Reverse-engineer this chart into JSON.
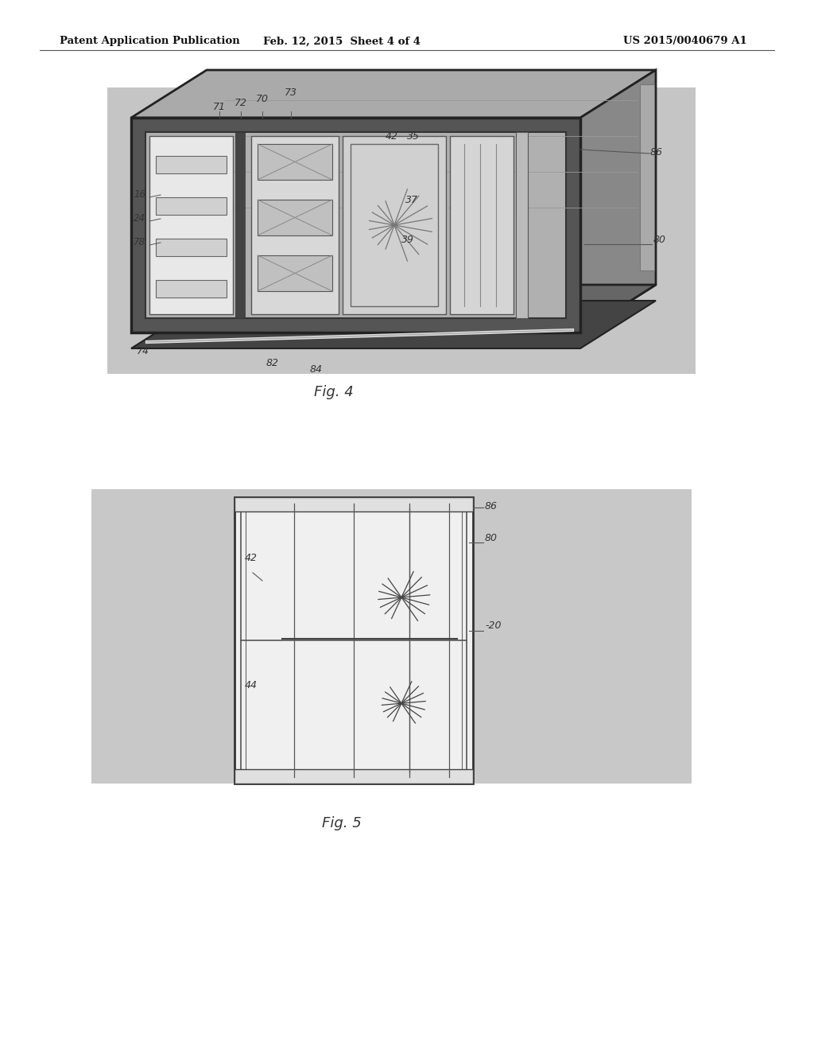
{
  "background_color": "#ffffff",
  "header_left": "Patent Application Publication",
  "header_mid": "Feb. 12, 2015  Sheet 4 of 4",
  "header_right": "US 2015/0040679 A1",
  "fig4_label": "Fig. 4",
  "fig5_label": "Fig. 5",
  "page_bg": "#cccccc",
  "fig4_bg": "#c8c8c8",
  "fig5_bg": "#c8c8c8"
}
